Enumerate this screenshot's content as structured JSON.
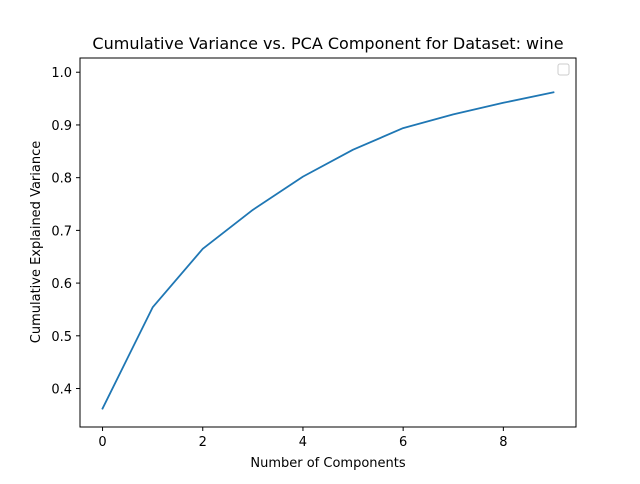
{
  "chart_data": {
    "type": "line",
    "title": "Cumulative Variance vs. PCA Component for Dataset: wine",
    "xlabel": "Number of Components",
    "ylabel": "Cumulative Explained Variance",
    "xlim": [
      -0.45,
      9.45
    ],
    "ylim": [
      0.327,
      1.027
    ],
    "x_ticks": [
      0,
      2,
      4,
      6,
      8
    ],
    "x_tick_labels": [
      "0",
      "2",
      "4",
      "6",
      "8"
    ],
    "y_ticks": [
      0.4,
      0.5,
      0.6,
      0.7,
      0.8,
      0.9,
      1.0
    ],
    "y_tick_labels": [
      "0.4",
      "0.5",
      "0.6",
      "0.7",
      "0.8",
      "0.9",
      "1.0"
    ],
    "grid": false,
    "legend": {
      "location": "top-right",
      "entries": []
    },
    "series": [
      {
        "color": "#1f77b4",
        "x": [
          0,
          1,
          2,
          3,
          4,
          5,
          6,
          7,
          8,
          9
        ],
        "values": [
          0.362,
          0.554,
          0.665,
          0.739,
          0.802,
          0.853,
          0.894,
          0.92,
          0.942,
          0.962
        ]
      }
    ]
  }
}
